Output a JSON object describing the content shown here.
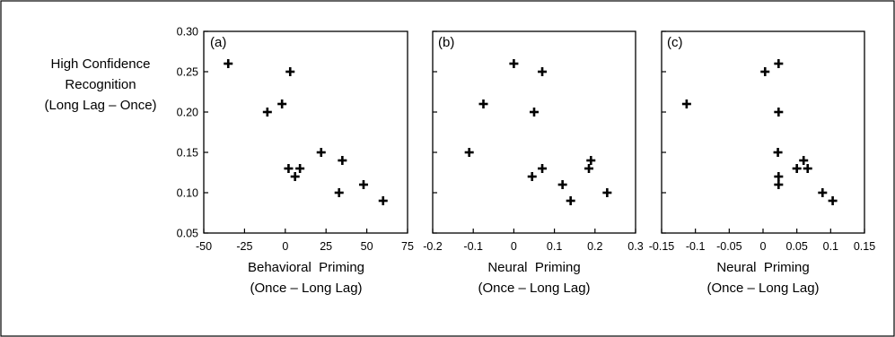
{
  "ylabel_lines": [
    "High Confidence",
    "Recognition",
    "(Long Lag – Once)"
  ],
  "chart_data": [
    {
      "type": "scatter",
      "panel_label": "(a)",
      "xlabel_lines": [
        "Behavioral  Priming",
        "(Once – Long Lag)"
      ],
      "xlim": [
        -50,
        75
      ],
      "ylim": [
        0.05,
        0.3
      ],
      "xticks": [
        -50,
        -25,
        0,
        25,
        50,
        75
      ],
      "xtick_labels": [
        "-50",
        "-25",
        "0",
        "25",
        "50",
        "75"
      ],
      "yticks": [
        0.05,
        0.1,
        0.15,
        0.2,
        0.25,
        0.3
      ],
      "ytick_labels": [
        "0.05",
        "0.10",
        "0.15",
        "0.20",
        "0.25",
        "0.30"
      ],
      "grid": false,
      "marker": "plus",
      "points": [
        {
          "x": -35,
          "y": 0.26
        },
        {
          "x": 3,
          "y": 0.25
        },
        {
          "x": -2,
          "y": 0.21
        },
        {
          "x": -11,
          "y": 0.2
        },
        {
          "x": 22,
          "y": 0.15
        },
        {
          "x": 35,
          "y": 0.14
        },
        {
          "x": 2,
          "y": 0.13
        },
        {
          "x": 9,
          "y": 0.13
        },
        {
          "x": 6,
          "y": 0.12
        },
        {
          "x": 48,
          "y": 0.11
        },
        {
          "x": 33,
          "y": 0.1
        },
        {
          "x": 60,
          "y": 0.09
        }
      ]
    },
    {
      "type": "scatter",
      "panel_label": "(b)",
      "xlabel_lines": [
        "Neural  Priming",
        "(Once – Long Lag)"
      ],
      "xlim": [
        -0.2,
        0.3
      ],
      "ylim": [
        0.05,
        0.3
      ],
      "xticks": [
        -0.2,
        -0.1,
        0,
        0.1,
        0.2,
        0.3
      ],
      "xtick_labels": [
        "-0.2",
        "-0.1",
        "0",
        "0.1",
        "0.2",
        "0.3"
      ],
      "yticks": [
        0.05,
        0.1,
        0.15,
        0.2,
        0.25,
        0.3
      ],
      "grid": false,
      "marker": "plus",
      "points": [
        {
          "x": 0.0,
          "y": 0.26
        },
        {
          "x": 0.07,
          "y": 0.25
        },
        {
          "x": -0.075,
          "y": 0.21
        },
        {
          "x": 0.05,
          "y": 0.2
        },
        {
          "x": -0.11,
          "y": 0.15
        },
        {
          "x": 0.19,
          "y": 0.14
        },
        {
          "x": 0.07,
          "y": 0.13
        },
        {
          "x": 0.185,
          "y": 0.13
        },
        {
          "x": 0.045,
          "y": 0.12
        },
        {
          "x": 0.12,
          "y": 0.11
        },
        {
          "x": 0.14,
          "y": 0.09
        },
        {
          "x": 0.23,
          "y": 0.1
        }
      ]
    },
    {
      "type": "scatter",
      "panel_label": "(c)",
      "xlabel_lines": [
        "Neural  Priming",
        "(Once – Long Lag)"
      ],
      "xlim": [
        -0.15,
        0.15
      ],
      "ylim": [
        0.05,
        0.3
      ],
      "xticks": [
        -0.15,
        -0.1,
        -0.05,
        0,
        0.05,
        0.1,
        0.15
      ],
      "xtick_labels": [
        "-0.15",
        "-0.1",
        "-0.05",
        "0",
        "0.05",
        "0.1",
        "0.15"
      ],
      "yticks": [
        0.05,
        0.1,
        0.15,
        0.2,
        0.25,
        0.3
      ],
      "grid": false,
      "marker": "plus",
      "points": [
        {
          "x": -0.113,
          "y": 0.21
        },
        {
          "x": 0.003,
          "y": 0.25
        },
        {
          "x": 0.023,
          "y": 0.26
        },
        {
          "x": 0.023,
          "y": 0.2
        },
        {
          "x": 0.022,
          "y": 0.15
        },
        {
          "x": 0.06,
          "y": 0.14
        },
        {
          "x": 0.05,
          "y": 0.13
        },
        {
          "x": 0.066,
          "y": 0.13
        },
        {
          "x": 0.023,
          "y": 0.12
        },
        {
          "x": 0.023,
          "y": 0.11
        },
        {
          "x": 0.088,
          "y": 0.1
        },
        {
          "x": 0.103,
          "y": 0.09
        }
      ]
    }
  ]
}
